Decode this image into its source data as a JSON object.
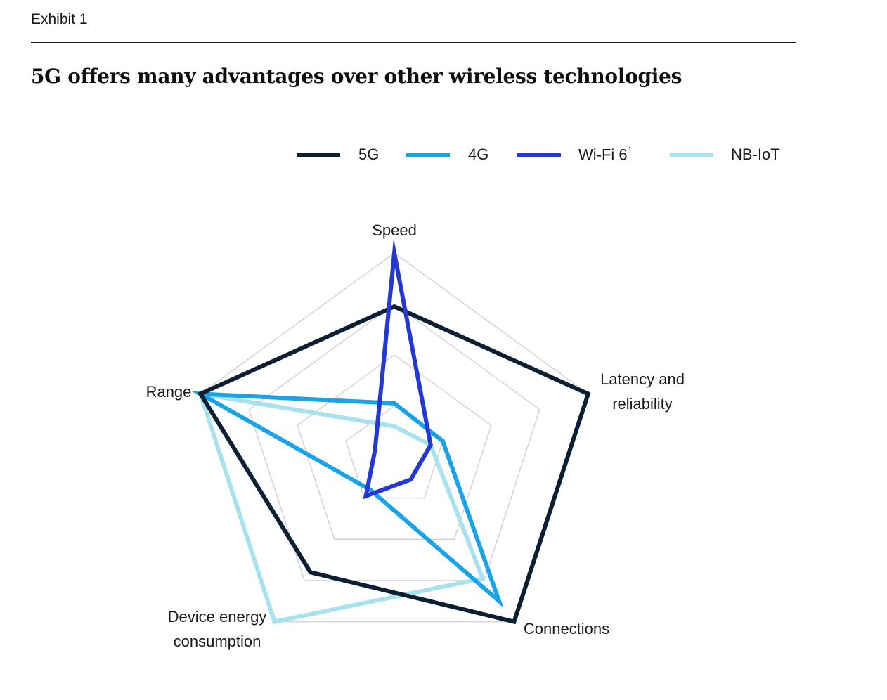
{
  "header": {
    "exhibit": "Exhibit 1",
    "title": "5G offers many advantages over other wireless technologies"
  },
  "chart_data": {
    "type": "radar",
    "title": "5G offers many advantages over other wireless technologies",
    "axes": [
      "Speed",
      "Latency and reliability",
      "Connections",
      "Device energy consumption",
      "Range"
    ],
    "axis_label_lines": [
      [
        "Speed"
      ],
      [
        "Latency and",
        "reliability"
      ],
      [
        "Connections"
      ],
      [
        "Device energy",
        "consumption"
      ],
      [
        "Range"
      ]
    ],
    "range": [
      0,
      4
    ],
    "rings": 4,
    "grid": true,
    "legend_position": "top-right",
    "series": [
      {
        "name": "5G",
        "color": "#0b1f33",
        "values": [
          2.95,
          4.0,
          4.0,
          2.8,
          4.0
        ]
      },
      {
        "name": "4G",
        "color": "#1aa3e8",
        "values": [
          1.05,
          1.0,
          3.5,
          0.8,
          4.0
        ]
      },
      {
        "name": "Wi-Fi 6",
        "name_sup": "1",
        "color": "#2438d6",
        "values": [
          4.0,
          0.75,
          0.55,
          0.95,
          0.4
        ]
      },
      {
        "name": "NB-IoT",
        "color": "#a8e2ee",
        "values": [
          0.6,
          0.75,
          2.95,
          4.0,
          4.0
        ]
      }
    ]
  }
}
